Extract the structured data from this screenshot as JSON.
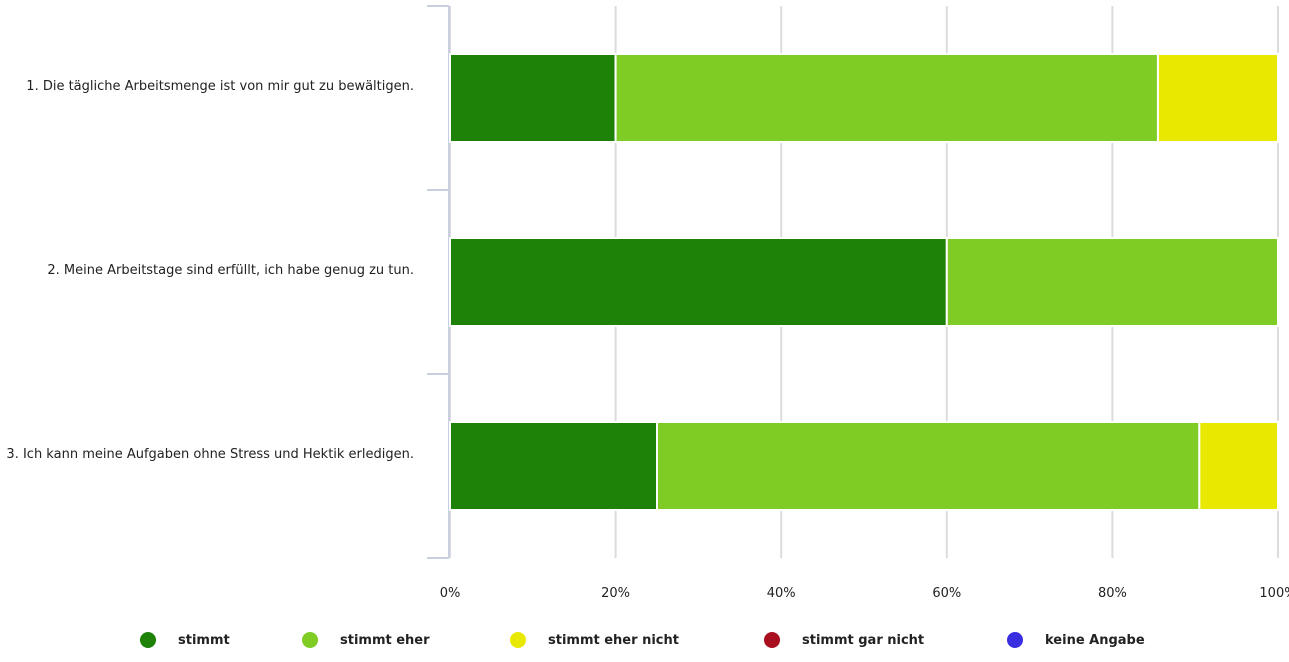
{
  "chart_data": {
    "type": "bar",
    "orientation": "horizontal",
    "stacked": true,
    "categories": [
      "1. Die tägliche Arbeitsmenge ist von mir gut zu bewältigen.",
      "2. Meine Arbeitstage sind erfüllt, ich habe genug zu tun.",
      "3. Ich kann meine Aufgaben ohne Stress und Hektik erledigen."
    ],
    "series": [
      {
        "name": "stimmt",
        "color": "#1e8209",
        "values": [
          20,
          60,
          25
        ]
      },
      {
        "name": "stimmt eher",
        "color": "#7fcc24",
        "values": [
          65.5,
          40,
          65.5
        ]
      },
      {
        "name": "stimmt eher nicht",
        "color": "#e8e800",
        "values": [
          14.5,
          0,
          9.5
        ]
      },
      {
        "name": "stimmt gar nicht",
        "color": "#aa0f1f",
        "values": [
          0,
          0,
          0
        ]
      },
      {
        "name": "keine Angabe",
        "color": "#3a2fe0",
        "values": [
          0,
          0,
          0
        ]
      }
    ],
    "xlim": [
      0,
      100
    ],
    "xticks": [
      "0%",
      "20%",
      "40%",
      "60%",
      "80%",
      "100%"
    ],
    "grid": true,
    "legend_position": "bottom",
    "title": "",
    "xlabel": "",
    "ylabel": ""
  }
}
